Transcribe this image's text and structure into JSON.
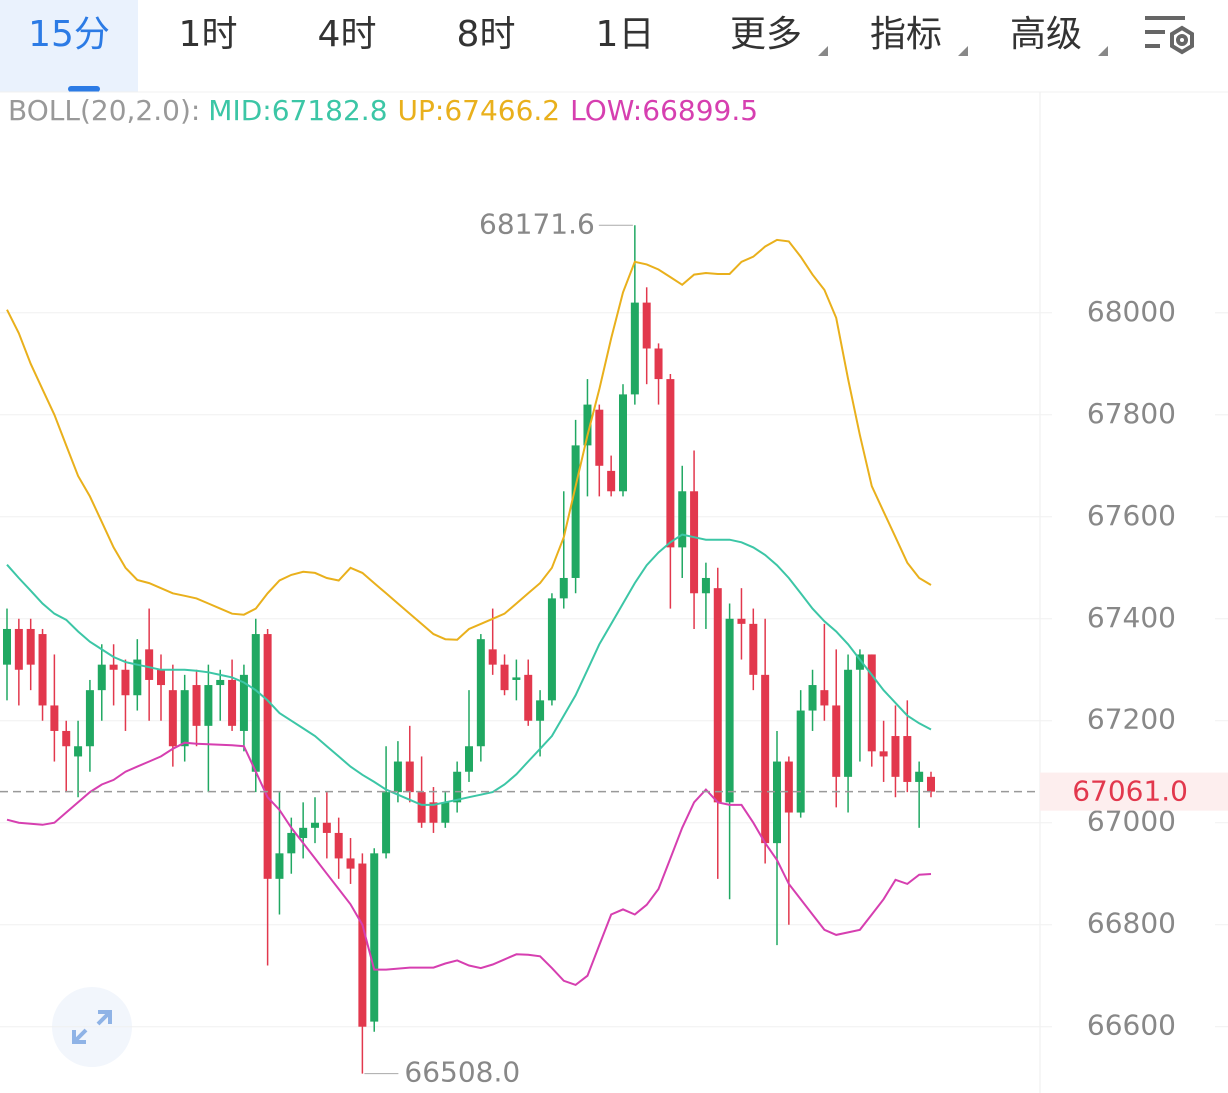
{
  "tabs": [
    "15分",
    "1时",
    "4时",
    "8时",
    "1日",
    "更多",
    "指标",
    "高级"
  ],
  "chart_data": {
    "type": "candlestick",
    "indicator": "BOLL(20,2.0):",
    "up_color": "#20a862",
    "down_color": "#e2384d",
    "ylim": [
      66470,
      68433
    ],
    "yticks": [
      66600,
      66800,
      67000,
      67200,
      67400,
      67600,
      67800,
      68000
    ],
    "last": {
      "value": 67061,
      "label": "67061.0"
    },
    "low_mark": {
      "value": 66508,
      "label": "66508.0"
    },
    "ohlc": [
      [
        67310,
        67420,
        67240,
        67380
      ],
      [
        67380,
        67400,
        67230,
        67300
      ],
      [
        67380,
        67400,
        67260,
        67310
      ],
      [
        67370,
        67380,
        67200,
        67230
      ],
      [
        67230,
        67330,
        67120,
        67180
      ],
      [
        67180,
        67200,
        67060,
        67150
      ],
      [
        67130,
        67200,
        67050,
        67150
      ],
      [
        67150,
        67280,
        67100,
        67260
      ],
      [
        67260,
        67350,
        67200,
        67310
      ],
      [
        67310,
        67350,
        67230,
        67300
      ],
      [
        67300,
        67320,
        67180,
        67250
      ],
      [
        67250,
        67360,
        67220,
        67320
      ],
      [
        67340,
        67420,
        67200,
        67280
      ],
      [
        67300,
        67330,
        67200,
        67270
      ],
      [
        67260,
        67310,
        67110,
        67150
      ],
      [
        67150,
        67290,
        67120,
        67260
      ],
      [
        67270,
        67300,
        67150,
        67190
      ],
      [
        67190,
        67310,
        67060,
        67270
      ],
      [
        67270,
        67300,
        67200,
        67280
      ],
      [
        67280,
        67320,
        67180,
        67190
      ],
      [
        67180,
        67310,
        67140,
        67290
      ],
      [
        67100,
        67400,
        67060,
        67370
      ],
      [
        67370,
        67380,
        66720,
        66890
      ],
      [
        66890,
        67060,
        66820,
        66940
      ],
      [
        66940,
        67010,
        66900,
        66980
      ],
      [
        66970,
        67040,
        66930,
        66990
      ],
      [
        66990,
        67050,
        66960,
        67000
      ],
      [
        67000,
        67060,
        66930,
        66980
      ],
      [
        66980,
        67010,
        66890,
        66930
      ],
      [
        66930,
        66970,
        66880,
        66910
      ],
      [
        66920,
        66940,
        66508,
        66600
      ],
      [
        66610,
        66950,
        66590,
        66940
      ],
      [
        66940,
        67150,
        66930,
        67060
      ],
      [
        67060,
        67160,
        67040,
        67120
      ],
      [
        67120,
        67190,
        67040,
        67060
      ],
      [
        67060,
        67130,
        66990,
        67000
      ],
      [
        67040,
        67070,
        66980,
        67000
      ],
      [
        67000,
        67060,
        66990,
        67040
      ],
      [
        67040,
        67120,
        67020,
        67100
      ],
      [
        67100,
        67260,
        67080,
        67150
      ],
      [
        67150,
        67370,
        67120,
        67360
      ],
      [
        67340,
        67420,
        67290,
        67310
      ],
      [
        67310,
        67330,
        67250,
        67260
      ],
      [
        67280,
        67320,
        67240,
        67285
      ],
      [
        67290,
        67320,
        67190,
        67200
      ],
      [
        67200,
        67260,
        67130,
        67240
      ],
      [
        67240,
        67450,
        67230,
        67440
      ],
      [
        67440,
        67650,
        67420,
        67480
      ],
      [
        67480,
        67790,
        67450,
        67740
      ],
      [
        67740,
        67870,
        67640,
        67820
      ],
      [
        67810,
        67820,
        67640,
        67700
      ],
      [
        67690,
        67720,
        67640,
        67650
      ],
      [
        67650,
        67860,
        67640,
        67840
      ],
      [
        67840,
        68171.6,
        67820,
        68020
      ],
      [
        68020,
        68050,
        67860,
        67930
      ],
      [
        67930,
        67940,
        67820,
        67870
      ],
      [
        67870,
        67880,
        67420,
        67540
      ],
      [
        67540,
        67700,
        67480,
        67650
      ],
      [
        67650,
        67730,
        67380,
        67450
      ],
      [
        67450,
        67510,
        67380,
        67480
      ],
      [
        67460,
        67500,
        66890,
        67040
      ],
      [
        67040,
        67430,
        66850,
        67400
      ],
      [
        67400,
        67460,
        67320,
        67390
      ],
      [
        67390,
        67420,
        67260,
        67290
      ],
      [
        67290,
        67400,
        66920,
        66960
      ],
      [
        66960,
        67180,
        66760,
        67120
      ],
      [
        67120,
        67130,
        66800,
        67020
      ],
      [
        67020,
        67260,
        67010,
        67220
      ],
      [
        67220,
        67300,
        67180,
        67270
      ],
      [
        67260,
        67390,
        67200,
        67230
      ],
      [
        67230,
        67340,
        67030,
        67090
      ],
      [
        67090,
        67330,
        67020,
        67300
      ],
      [
        67300,
        67340,
        67120,
        67330
      ],
      [
        67330,
        67330,
        67110,
        67140
      ],
      [
        67140,
        67200,
        67080,
        67130
      ],
      [
        67170,
        67230,
        67050,
        67090
      ],
      [
        67170,
        67240,
        67060,
        67080
      ],
      [
        67080,
        67120,
        66990,
        67100
      ],
      [
        67090,
        67100,
        67050,
        67061
      ]
    ],
    "series": [
      {
        "name": "MID:",
        "current": 67182.8,
        "color": "#3cc6a6",
        "values": [
          67506,
          67480,
          67455,
          67430,
          67410,
          67398,
          67375,
          67355,
          67340,
          67325,
          67315,
          67310,
          67305,
          67300,
          67300,
          67300,
          67298,
          67295,
          67290,
          67285,
          67275,
          67260,
          67240,
          67215,
          67200,
          67185,
          67170,
          67150,
          67130,
          67110,
          67094,
          67080,
          67065,
          67055,
          67045,
          67035,
          67035,
          67040,
          67045,
          67050,
          67055,
          67060,
          67075,
          67095,
          67120,
          67145,
          67170,
          67210,
          67250,
          67300,
          67350,
          67390,
          67430,
          67470,
          67505,
          67530,
          67550,
          67565,
          67560,
          67555,
          67555,
          67555,
          67550,
          67540,
          67525,
          67505,
          67480,
          67450,
          67420,
          67395,
          67375,
          67350,
          67320,
          67290,
          67260,
          67235,
          67210,
          67195,
          67182.8
        ]
      },
      {
        "name": "UP:",
        "current": 67466.2,
        "color": "#e9b01c",
        "values": [
          68006,
          67960,
          67900,
          67850,
          67800,
          67740,
          67680,
          67640,
          67590,
          67540,
          67500,
          67476,
          67470,
          67460,
          67450,
          67445,
          67440,
          67430,
          67420,
          67410,
          67408,
          67420,
          67450,
          67475,
          67486,
          67492,
          67490,
          67480,
          67475,
          67500,
          67490,
          67470,
          67450,
          67430,
          67410,
          67390,
          67370,
          67360,
          67359,
          67380,
          67390,
          67400,
          67410,
          67430,
          67450,
          67470,
          67500,
          67560,
          67660,
          67760,
          67850,
          67950,
          68040,
          68100,
          68095,
          68085,
          68070,
          68055,
          68075,
          68078,
          68076,
          68076,
          68100,
          68110,
          68130,
          68143,
          68140,
          68110,
          68075,
          68045,
          67990,
          67870,
          67760,
          67660,
          67610,
          67560,
          67510,
          67480,
          67466.2
        ]
      },
      {
        "name": "LOW:",
        "current": 66899.5,
        "color": "#d63fb0",
        "values": [
          67006,
          67000,
          66998,
          66996,
          67000,
          67020,
          67040,
          67060,
          67075,
          67084,
          67100,
          67110,
          67120,
          67130,
          67145,
          67157,
          67155,
          67154,
          67153,
          67152,
          67150,
          67100,
          67050,
          67025,
          66990,
          66960,
          66930,
          66900,
          66870,
          66840,
          66800,
          66712,
          66712,
          66714,
          66716,
          66716,
          66716,
          66724,
          66730,
          66720,
          66715,
          66722,
          66732,
          66742,
          66741,
          66738,
          66715,
          66690,
          66682,
          66700,
          66760,
          66820,
          66830,
          66820,
          66839,
          66870,
          66930,
          66990,
          67040,
          67065,
          67040,
          67035,
          67035,
          67000,
          66960,
          66927,
          66880,
          66850,
          66820,
          66790,
          66780,
          66785,
          66790,
          66820,
          66850,
          66888,
          66880,
          66898,
          66899.5
        ]
      }
    ]
  }
}
